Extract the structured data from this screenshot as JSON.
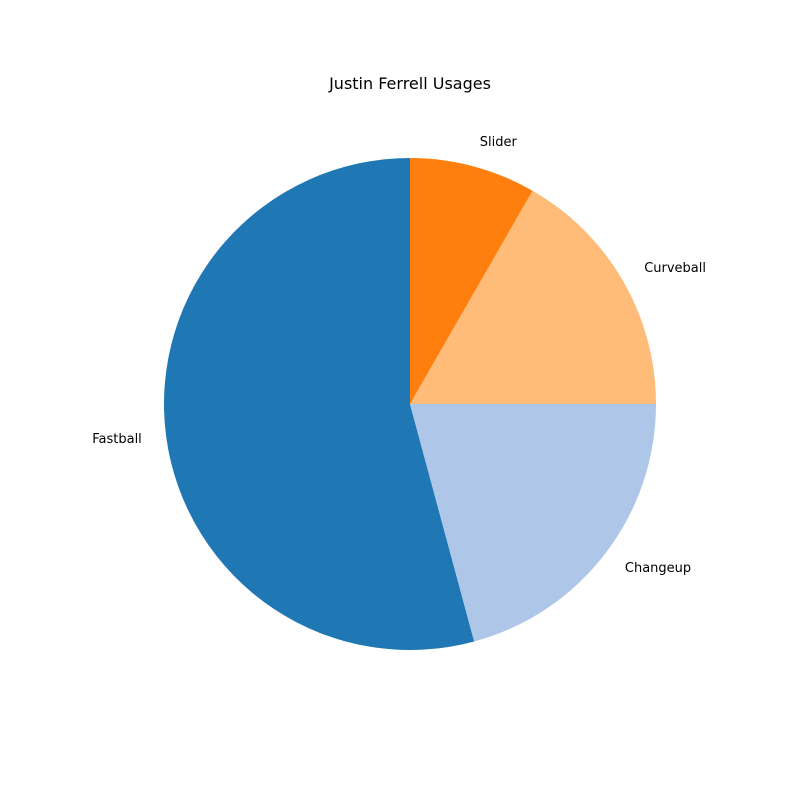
{
  "chart_data": {
    "type": "pie",
    "title": "Justin Ferrell Usages",
    "categories": [
      "Fastball",
      "Changeup",
      "Curveball",
      "Slider"
    ],
    "values": [
      54.2,
      20.8,
      16.7,
      8.3
    ],
    "colors": [
      "#1f77b4",
      "#aec7e8",
      "#ffbb78",
      "#ff7f0e"
    ],
    "start_angle_deg": 90,
    "direction": "counterclockwise",
    "legend": "none"
  }
}
